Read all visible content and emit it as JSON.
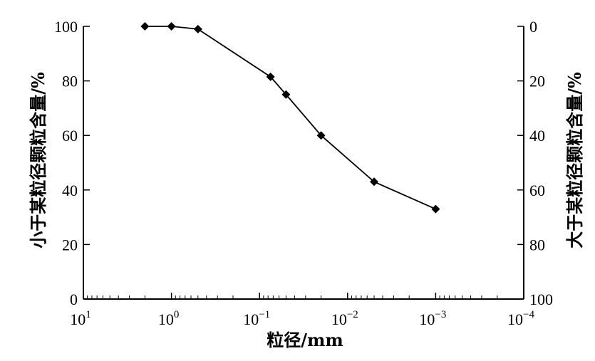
{
  "chart_data": {
    "type": "line",
    "title": "",
    "xlabel": "粒径/mm",
    "ylabel_left": "小于某粒径颗粒含量/%",
    "ylabel_right": "大于某粒径颗粒含量/%",
    "x_scale": "log",
    "x_reversed": true,
    "xlim": [
      10,
      0.0001
    ],
    "x_ticks": [
      {
        "value": 10,
        "base": "10",
        "exp": "1"
      },
      {
        "value": 1,
        "base": "10",
        "exp": "0"
      },
      {
        "value": 0.1,
        "base": "10",
        "exp": "−1"
      },
      {
        "value": 0.01,
        "base": "10",
        "exp": "−2"
      },
      {
        "value": 0.001,
        "base": "10",
        "exp": "−3"
      },
      {
        "value": 0.0001,
        "base": "10",
        "exp": "−4"
      }
    ],
    "ylim_left": [
      0,
      100
    ],
    "y_ticks_left": [
      "0",
      "20",
      "40",
      "60",
      "80",
      "100"
    ],
    "ylim_right": [
      100,
      0
    ],
    "y_ticks_right": [
      "100",
      "80",
      "60",
      "40",
      "20",
      "0"
    ],
    "grid": false,
    "series": [
      {
        "marker": "diamond",
        "color": "#000000",
        "points": [
          {
            "x": 2,
            "y": 100
          },
          {
            "x": 1,
            "y": 100
          },
          {
            "x": 0.5,
            "y": 99
          },
          {
            "x": 0.075,
            "y": 81.5
          },
          {
            "x": 0.05,
            "y": 75
          },
          {
            "x": 0.02,
            "y": 60
          },
          {
            "x": 0.005,
            "y": 43
          },
          {
            "x": 0.001,
            "y": 33
          }
        ]
      }
    ]
  }
}
